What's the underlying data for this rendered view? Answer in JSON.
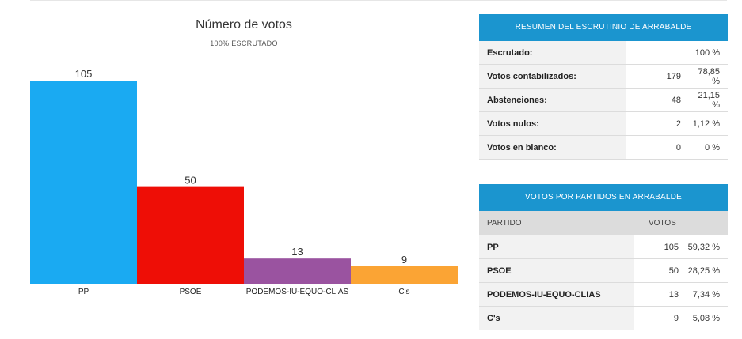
{
  "chart_data": {
    "type": "bar",
    "title": "Número de votos",
    "subtitle": "100% ESCRUTADO",
    "categories": [
      "PP",
      "PSOE",
      "PODEMOS-IU-EQUO-CLIAS",
      "C's"
    ],
    "values": [
      105,
      50,
      13,
      9
    ],
    "colors": [
      "#1aaaf2",
      "#ee0e06",
      "#9a53a0",
      "#fba434"
    ],
    "ylim": [
      0,
      105
    ],
    "grid": false,
    "legend": "none"
  },
  "colors": {
    "header_blue": "#1b95cf"
  },
  "summary": {
    "header": "RESUMEN DEL ESCRUTINIO DE ARRABALDE",
    "rows": [
      {
        "label": "Escrutado:",
        "c1": "",
        "c2": "100 %"
      },
      {
        "label": "Votos contabilizados:",
        "c1": "179",
        "c2": "78,85 %"
      },
      {
        "label": "Abstenciones:",
        "c1": "48",
        "c2": "21,15 %"
      },
      {
        "label": "Votos nulos:",
        "c1": "2",
        "c2": "1,12 %"
      },
      {
        "label": "Votos en blanco:",
        "c1": "0",
        "c2": "0 %"
      }
    ]
  },
  "parties": {
    "header": "VOTOS POR PARTIDOS EN ARRABALDE",
    "col_party": "PARTIDO",
    "col_votes": "VOTOS",
    "rows": [
      {
        "party": "PP",
        "votes": "105",
        "pct": "59,32 %"
      },
      {
        "party": "PSOE",
        "votes": "50",
        "pct": "28,25 %"
      },
      {
        "party": "PODEMOS-IU-EQUO-CLIAS",
        "votes": "13",
        "pct": "7,34 %"
      },
      {
        "party": "C's",
        "votes": "9",
        "pct": "5,08 %"
      }
    ]
  }
}
